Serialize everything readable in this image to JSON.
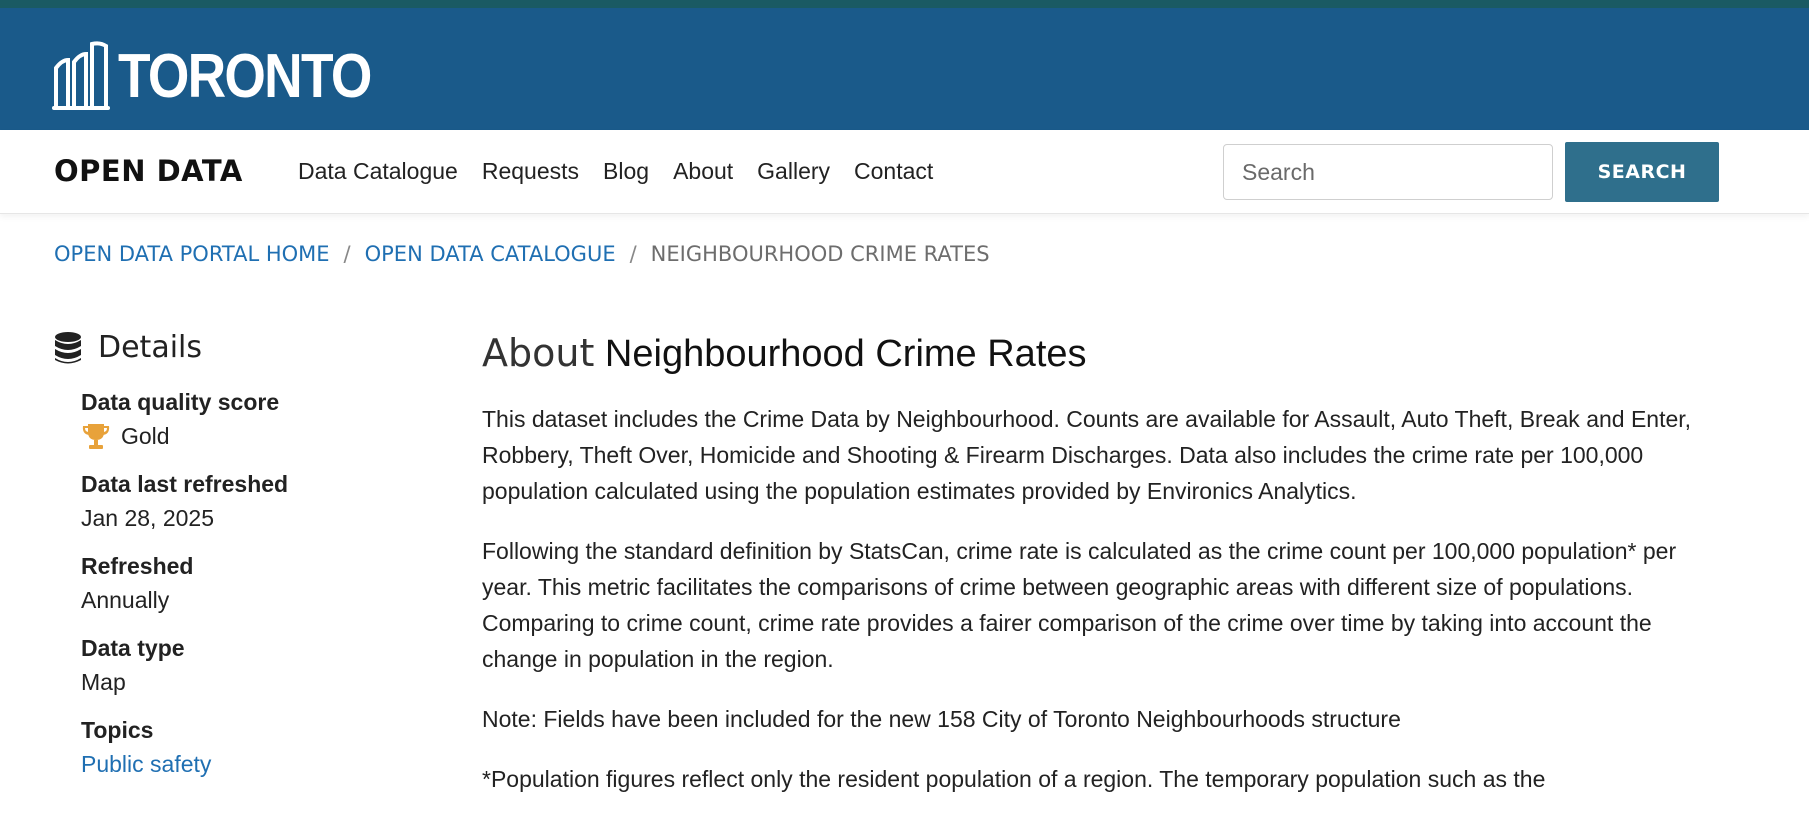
{
  "header": {
    "logo_text": "TORONTO"
  },
  "nav": {
    "site_name": "OPEN DATA",
    "links": [
      "Data Catalogue",
      "Requests",
      "Blog",
      "About",
      "Gallery",
      "Contact"
    ],
    "search_placeholder": "Search",
    "search_button": "SEARCH"
  },
  "breadcrumb": {
    "items": [
      "OPEN DATA PORTAL HOME",
      "OPEN DATA CATALOGUE"
    ],
    "current": "NEIGHBOURHOOD CRIME RATES",
    "separator": "/"
  },
  "sidebar": {
    "heading": "Details",
    "quality_label": "Data quality score",
    "quality_value": "Gold",
    "refreshed_label": "Data last refreshed",
    "refreshed_value": "Jan 28, 2025",
    "frequency_label": "Refreshed",
    "frequency_value": "Annually",
    "type_label": "Data type",
    "type_value": "Map",
    "topics_label": "Topics",
    "topics_value": "Public safety"
  },
  "main": {
    "title_prefix": "About",
    "title_name": "Neighbourhood Crime Rates",
    "paragraphs": [
      "This dataset includes the Crime Data by Neighbourhood. Counts are available for Assault, Auto Theft, Break and Enter, Robbery, Theft Over, Homicide and Shooting & Firearm Discharges. Data also includes the crime rate per 100,000 population calculated using the population estimates provided by Environics Analytics.",
      "Following the standard definition by StatsCan, crime rate is calculated as the crime count per 100,000 population* per year. This metric facilitates the comparisons of crime between geographic areas with different size of populations. Comparing to crime count, crime rate provides a fairer comparison of the crime over time by taking into account the change in population in the region.",
      "Note: Fields have been included for the new 158 City of Toronto Neighbourhoods structure",
      "*Population figures reflect only the resident population of a region. The temporary population such as the"
    ]
  },
  "colors": {
    "brand_blue": "#1a5a8a",
    "accent_teal": "#1a5a63",
    "link_blue": "#1f6fb2",
    "button_blue": "#2f6f8c",
    "gold": "#e8a23a"
  }
}
